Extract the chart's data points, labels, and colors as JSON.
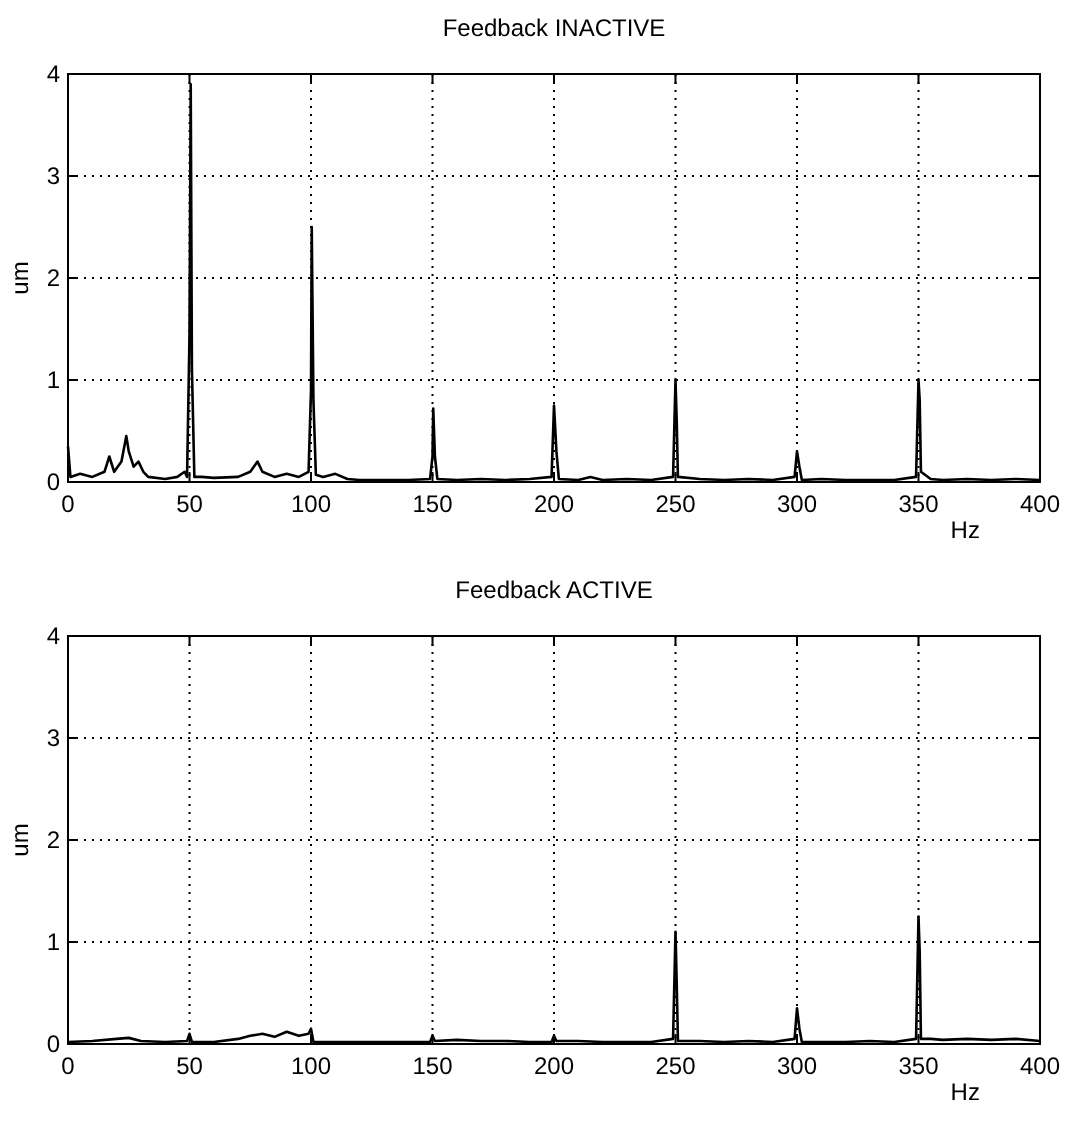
{
  "chart_data": [
    {
      "type": "line",
      "title": "Feedback INACTIVE",
      "xlabel": "Hz",
      "ylabel": "um",
      "xlim": [
        0,
        400
      ],
      "ylim": [
        0,
        4
      ],
      "xticks": [
        0,
        50,
        100,
        150,
        200,
        250,
        300,
        350,
        400
      ],
      "yticks": [
        0,
        1,
        2,
        3,
        4
      ],
      "grid": true,
      "line_style": "solid",
      "series": [
        {
          "color": "#000000",
          "x": [
            0,
            1,
            5,
            10,
            15,
            17,
            19,
            22,
            24,
            25,
            27,
            29,
            31,
            33,
            40,
            45,
            48,
            49,
            50,
            50.5,
            51,
            52,
            55,
            60,
            70,
            75,
            78,
            80,
            85,
            90,
            95,
            99,
            100,
            100.3,
            101,
            102,
            105,
            110,
            115,
            120,
            130,
            140,
            149,
            150,
            150.3,
            151,
            152,
            160,
            170,
            180,
            190,
            199,
            200,
            201,
            202,
            210,
            215,
            220,
            230,
            240,
            249,
            250,
            250.5,
            251,
            260,
            270,
            280,
            290,
            299,
            300,
            301,
            302,
            310,
            320,
            330,
            340,
            349,
            350,
            350.5,
            351,
            355,
            360,
            370,
            380,
            390,
            400
          ],
          "values": [
            0.35,
            0.05,
            0.08,
            0.05,
            0.1,
            0.25,
            0.1,
            0.2,
            0.45,
            0.3,
            0.15,
            0.2,
            0.1,
            0.05,
            0.03,
            0.05,
            0.1,
            0.05,
            1.45,
            3.9,
            1.1,
            0.05,
            0.05,
            0.04,
            0.05,
            0.1,
            0.2,
            0.1,
            0.05,
            0.08,
            0.05,
            0.1,
            0.9,
            2.5,
            0.8,
            0.07,
            0.05,
            0.08,
            0.03,
            0.02,
            0.02,
            0.02,
            0.03,
            0.25,
            0.72,
            0.25,
            0.03,
            0.02,
            0.03,
            0.02,
            0.03,
            0.05,
            0.75,
            0.3,
            0.03,
            0.02,
            0.05,
            0.02,
            0.03,
            0.02,
            0.05,
            1.0,
            0.6,
            0.05,
            0.03,
            0.02,
            0.03,
            0.02,
            0.05,
            0.3,
            0.15,
            0.02,
            0.03,
            0.02,
            0.02,
            0.02,
            0.05,
            1.0,
            0.8,
            0.1,
            0.03,
            0.02,
            0.03,
            0.02,
            0.03,
            0.02
          ]
        }
      ]
    },
    {
      "type": "line",
      "title": "Feedback ACTIVE",
      "xlabel": "Hz",
      "ylabel": "um",
      "xlim": [
        0,
        400
      ],
      "ylim": [
        0,
        4
      ],
      "xticks": [
        0,
        50,
        100,
        150,
        200,
        250,
        300,
        350,
        400
      ],
      "yticks": [
        0,
        1,
        2,
        3,
        4
      ],
      "grid": true,
      "line_style": "solid",
      "series": [
        {
          "color": "#000000",
          "x": [
            0,
            10,
            20,
            25,
            30,
            40,
            49,
            50,
            51,
            60,
            70,
            75,
            80,
            85,
            90,
            95,
            99,
            100,
            101,
            110,
            120,
            130,
            140,
            149,
            150,
            151,
            160,
            170,
            180,
            190,
            199,
            200,
            201,
            210,
            220,
            230,
            240,
            249,
            250,
            250.5,
            251,
            260,
            270,
            280,
            290,
            299,
            300,
            301,
            302,
            310,
            320,
            330,
            340,
            349,
            350,
            350.5,
            351,
            355,
            360,
            370,
            380,
            390,
            400
          ],
          "values": [
            0.02,
            0.03,
            0.05,
            0.06,
            0.03,
            0.02,
            0.03,
            0.1,
            0.02,
            0.02,
            0.05,
            0.08,
            0.1,
            0.07,
            0.12,
            0.08,
            0.1,
            0.15,
            0.02,
            0.02,
            0.02,
            0.02,
            0.02,
            0.02,
            0.08,
            0.03,
            0.04,
            0.03,
            0.03,
            0.02,
            0.02,
            0.08,
            0.03,
            0.03,
            0.02,
            0.02,
            0.02,
            0.05,
            1.1,
            0.6,
            0.03,
            0.03,
            0.02,
            0.03,
            0.02,
            0.05,
            0.35,
            0.15,
            0.02,
            0.02,
            0.02,
            0.03,
            0.02,
            0.05,
            1.25,
            0.9,
            0.05,
            0.05,
            0.04,
            0.05,
            0.04,
            0.05,
            0.03
          ]
        }
      ]
    }
  ]
}
